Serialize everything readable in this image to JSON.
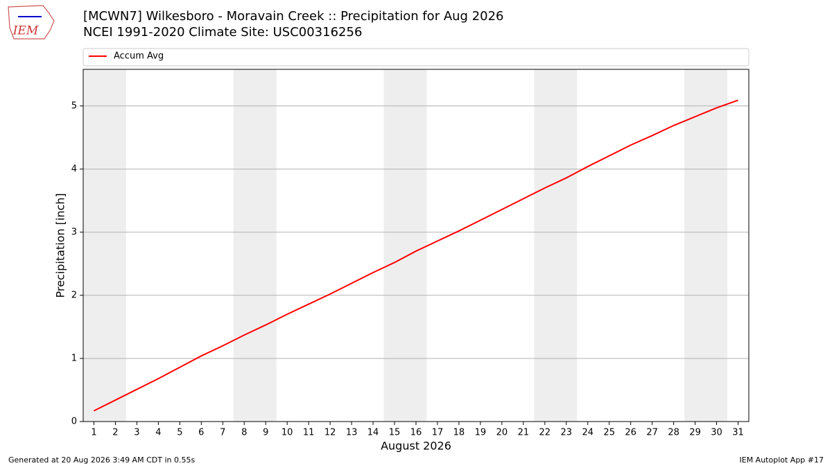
{
  "logo": "IEM",
  "footer": {
    "left": "Generated at 20 Aug 2026 3:49 AM CDT in 0.55s",
    "right": "IEM Autoplot App #17"
  },
  "chart_data": {
    "type": "line",
    "title": "[MCWN7] Wilkesboro - Moravain Creek :: Precipitation for Aug 2026",
    "subtitle": "NCEI 1991-2020 Climate Site: USC00316256",
    "x_label": "August 2026",
    "y_label": "Precipitation [inch]",
    "x": [
      1,
      2,
      3,
      4,
      5,
      6,
      7,
      8,
      9,
      10,
      11,
      12,
      13,
      14,
      15,
      16,
      17,
      18,
      19,
      20,
      21,
      22,
      23,
      24,
      25,
      26,
      27,
      28,
      29,
      30,
      31
    ],
    "series": [
      {
        "name": "Accum Avg",
        "color": "#ff0000",
        "values": [
          0.17,
          0.34,
          0.51,
          0.68,
          0.86,
          1.04,
          1.2,
          1.37,
          1.53,
          1.7,
          1.86,
          2.02,
          2.19,
          2.36,
          2.52,
          2.7,
          2.86,
          3.02,
          3.19,
          3.36,
          3.53,
          3.7,
          3.86,
          4.04,
          4.21,
          4.38,
          4.53,
          4.69,
          4.83,
          4.97,
          5.09
        ]
      }
    ],
    "shaded_ranges": [
      [
        1,
        2
      ],
      [
        8,
        9
      ],
      [
        15,
        16
      ],
      [
        22,
        23
      ],
      [
        29,
        30
      ]
    ],
    "shade_color": "#eeeeee",
    "xlim": [
      0.5,
      31.5
    ],
    "xticks": [
      1,
      2,
      3,
      4,
      5,
      6,
      7,
      8,
      9,
      10,
      11,
      12,
      13,
      14,
      15,
      16,
      17,
      18,
      19,
      20,
      21,
      22,
      23,
      24,
      25,
      26,
      27,
      28,
      29,
      30,
      31
    ],
    "ylim": [
      0,
      5.58
    ],
    "yticks": [
      0,
      1,
      2,
      3,
      4,
      5
    ],
    "grid": true,
    "legend": "top"
  }
}
